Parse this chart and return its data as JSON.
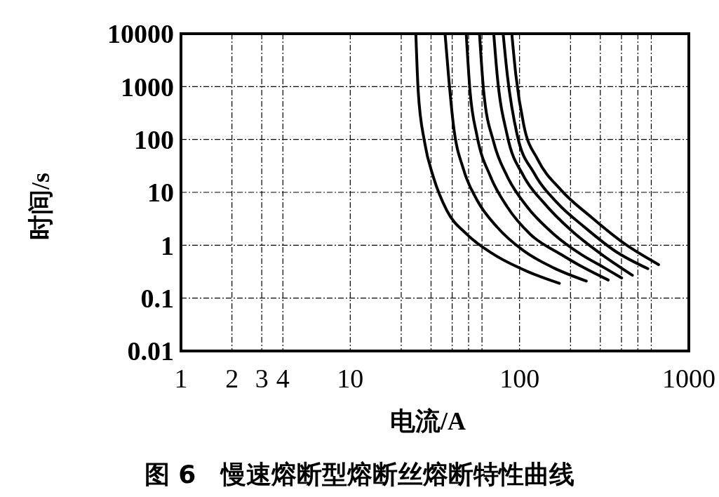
{
  "chart_data": {
    "type": "line",
    "title": "图 6　慢速熔断型熔断丝熔断特性曲线",
    "xlabel": "电流/A",
    "ylabel": "时间/s",
    "log": "xy",
    "grid": true,
    "marker": "none",
    "line_style": "solid",
    "xlim": [
      1,
      1000
    ],
    "ylim": [
      0.01,
      10000
    ],
    "xticks": [
      1,
      2,
      3,
      4,
      10,
      {
        "value": 20,
        "label": null
      },
      {
        "value": 30,
        "label": null
      },
      {
        "value": 40,
        "label": null
      },
      {
        "value": 50,
        "label": null
      },
      {
        "value": 60,
        "label": null
      },
      100,
      {
        "value": 200,
        "label": null
      },
      {
        "value": 300,
        "label": null
      },
      {
        "value": 400,
        "label": null
      },
      {
        "value": 500,
        "label": null
      },
      {
        "value": 600,
        "label": null
      },
      1000
    ],
    "yticks": [
      0.01,
      0.1,
      1,
      10,
      100,
      1000,
      10000
    ],
    "series": [
      {
        "color": "#000000",
        "x": [
          24.4,
          25.2,
          27.5,
          30.9,
          37.1,
          48.9,
          70.4,
          111,
          172
        ],
        "values": [
          10000,
          811,
          88,
          20,
          4.6,
          1.6,
          0.67,
          0.32,
          0.19
        ]
      },
      {
        "color": "#000000",
        "x": [
          36.3,
          38,
          40.7,
          46.7,
          56,
          73.7,
          106,
          160,
          248
        ],
        "values": [
          10000,
          1700,
          185,
          27,
          7.2,
          2.2,
          0.78,
          0.37,
          0.21
        ]
      },
      {
        "color": "#000000",
        "x": [
          48.4,
          51,
          56,
          67.3,
          84.6,
          116,
          176,
          242,
          334
        ],
        "values": [
          10000,
          811,
          119,
          20,
          5.3,
          1.6,
          0.67,
          0.37,
          0.22
        ]
      },
      {
        "color": "#000000",
        "x": [
          58,
          61.4,
          70.4,
          84.6,
          111,
          160,
          231,
          319,
          401
        ],
        "values": [
          10000,
          811,
          88,
          20,
          5.3,
          1.6,
          0.67,
          0.37,
          0.24
        ]
      },
      {
        "color": "#000000",
        "x": [
          70.4,
          73.7,
          84.6,
          106,
          140,
          202,
          305,
          464
        ],
        "values": [
          10000,
          1700,
          119,
          20,
          6.2,
          1.9,
          0.67,
          0.27
        ]
      },
      {
        "color": "#000000",
        "x": [
          80,
          84.6,
          97,
          122,
          168,
          242,
          366,
          573
        ],
        "values": [
          10000,
          1700,
          119,
          23,
          6.2,
          2.2,
          0.78,
          0.36
        ]
      },
      {
        "color": "#000000",
        "x": [
          90,
          95,
          106,
          128,
          176,
          265,
          420,
          663
        ],
        "values": [
          10000,
          1700,
          185,
          42,
          11,
          3.4,
          1.05,
          0.43
        ]
      }
    ]
  }
}
